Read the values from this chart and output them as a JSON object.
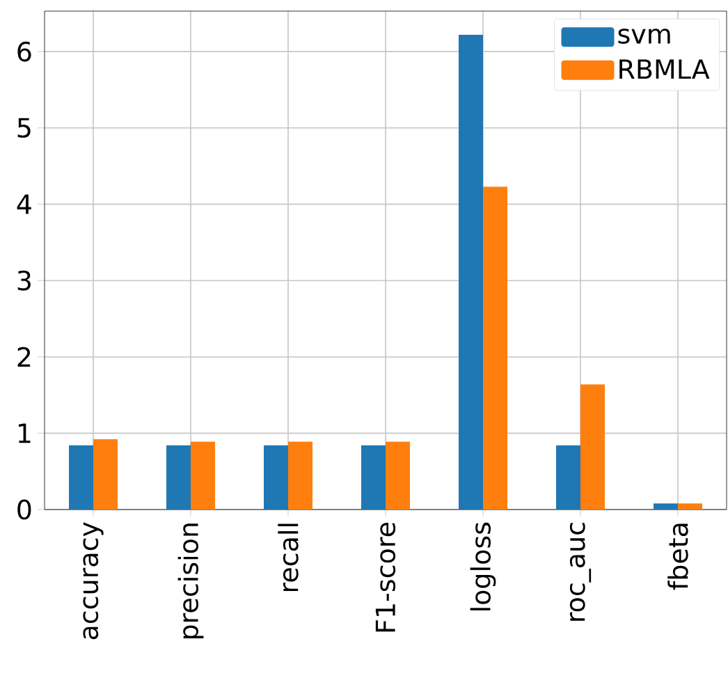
{
  "chart_data": {
    "type": "bar",
    "categories": [
      "accuracy",
      "precision",
      "recall",
      "F1-score",
      "logloss",
      "roc_auc",
      "fbeta"
    ],
    "series": [
      {
        "name": "svm",
        "color": "#1f77b4",
        "values": [
          0.84,
          0.84,
          0.84,
          0.84,
          6.22,
          0.84,
          0.08
        ]
      },
      {
        "name": "RBMLA",
        "color": "#ff7f0e",
        "values": [
          0.92,
          0.89,
          0.89,
          0.89,
          4.23,
          1.64,
          0.08
        ]
      }
    ],
    "ylim": [
      0,
      6.53
    ],
    "yticks": [
      0,
      1,
      2,
      3,
      4,
      5,
      6
    ],
    "grid": true,
    "legend": "top right"
  }
}
